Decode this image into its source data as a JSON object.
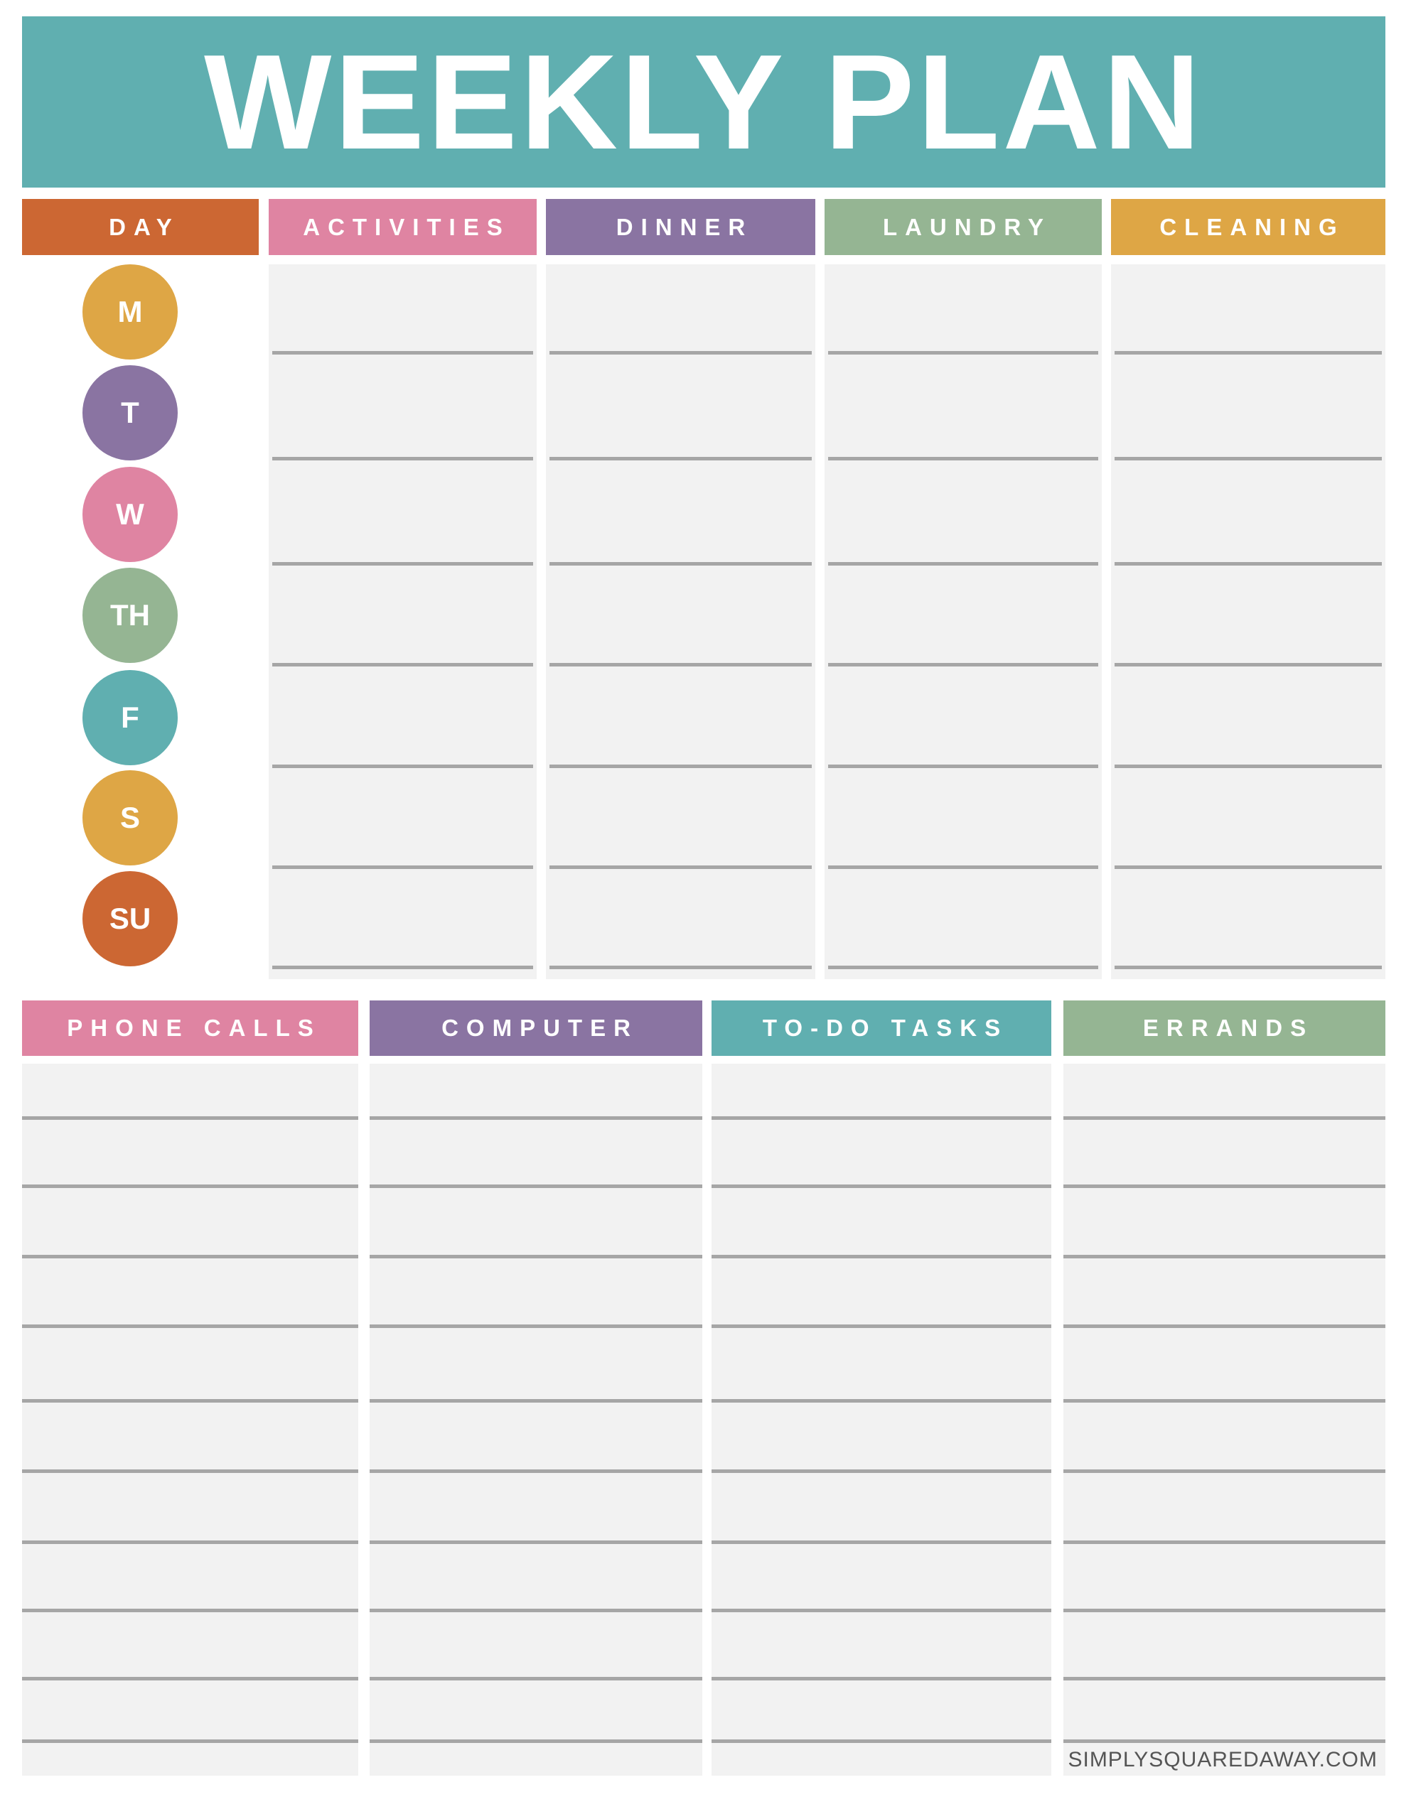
{
  "title": "WEEKLY PLAN",
  "colors": {
    "teal": "#60afb0",
    "orange": "#cc6733",
    "pink": "#df84a2",
    "purple": "#8a74a2",
    "sage": "#95b593",
    "mustard": "#dea645",
    "cell": "#f2f2f2",
    "rule": "#a6a6a6"
  },
  "top_section": {
    "columns": [
      {
        "label": "DAY",
        "color": "#cc6733"
      },
      {
        "label": "ACTIVITIES",
        "color": "#df84a2"
      },
      {
        "label": "DINNER",
        "color": "#8a74a2"
      },
      {
        "label": "LAUNDRY",
        "color": "#95b593"
      },
      {
        "label": "CLEANING",
        "color": "#dea645"
      }
    ],
    "days": [
      {
        "label": "M",
        "color": "#dea645"
      },
      {
        "label": "T",
        "color": "#8a74a2"
      },
      {
        "label": "W",
        "color": "#df84a2"
      },
      {
        "label": "TH",
        "color": "#95b593"
      },
      {
        "label": "F",
        "color": "#60afb0"
      },
      {
        "label": "S",
        "color": "#dea645"
      },
      {
        "label": "SU",
        "color": "#cc6733"
      }
    ]
  },
  "bottom_section": {
    "columns": [
      {
        "label": "PHONE CALLS",
        "color": "#df84a2"
      },
      {
        "label": "COMPUTER",
        "color": "#8a74a2"
      },
      {
        "label": "TO-DO TASKS",
        "color": "#60afb0"
      },
      {
        "label": "ERRANDS",
        "color": "#95b593"
      }
    ]
  },
  "footer": "SIMPLYSQUAREDAWAY.COM"
}
